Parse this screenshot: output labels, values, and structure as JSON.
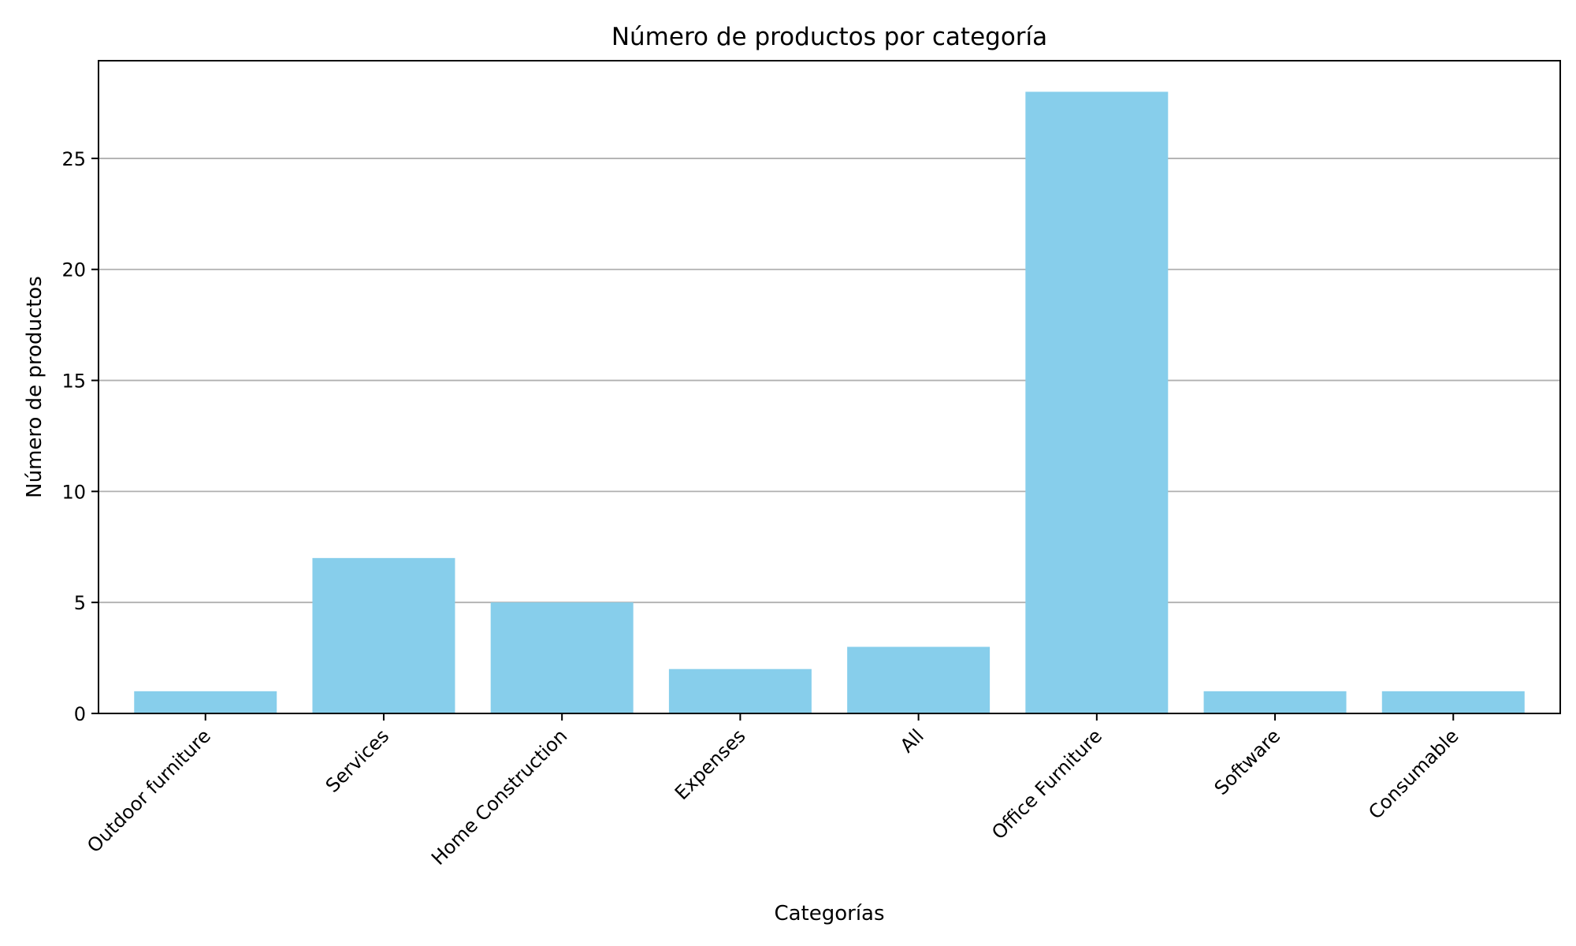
{
  "chart_data": {
    "type": "bar",
    "title": "Número de productos por categoría",
    "xlabel": "Categorías",
    "ylabel": "Número de productos",
    "categories": [
      "Outdoor furniture",
      "Services",
      "Home Construction",
      "Expenses",
      "All",
      "Office Furniture",
      "Software",
      "Consumable"
    ],
    "values": [
      1,
      7,
      5,
      2,
      3,
      28,
      1,
      1
    ],
    "ylim": [
      0,
      29.4
    ],
    "yticks": [
      0,
      5,
      10,
      15,
      20,
      25
    ],
    "grid": "y",
    "bar_color": "#87ceeb",
    "tick_rotation_deg": -45
  }
}
